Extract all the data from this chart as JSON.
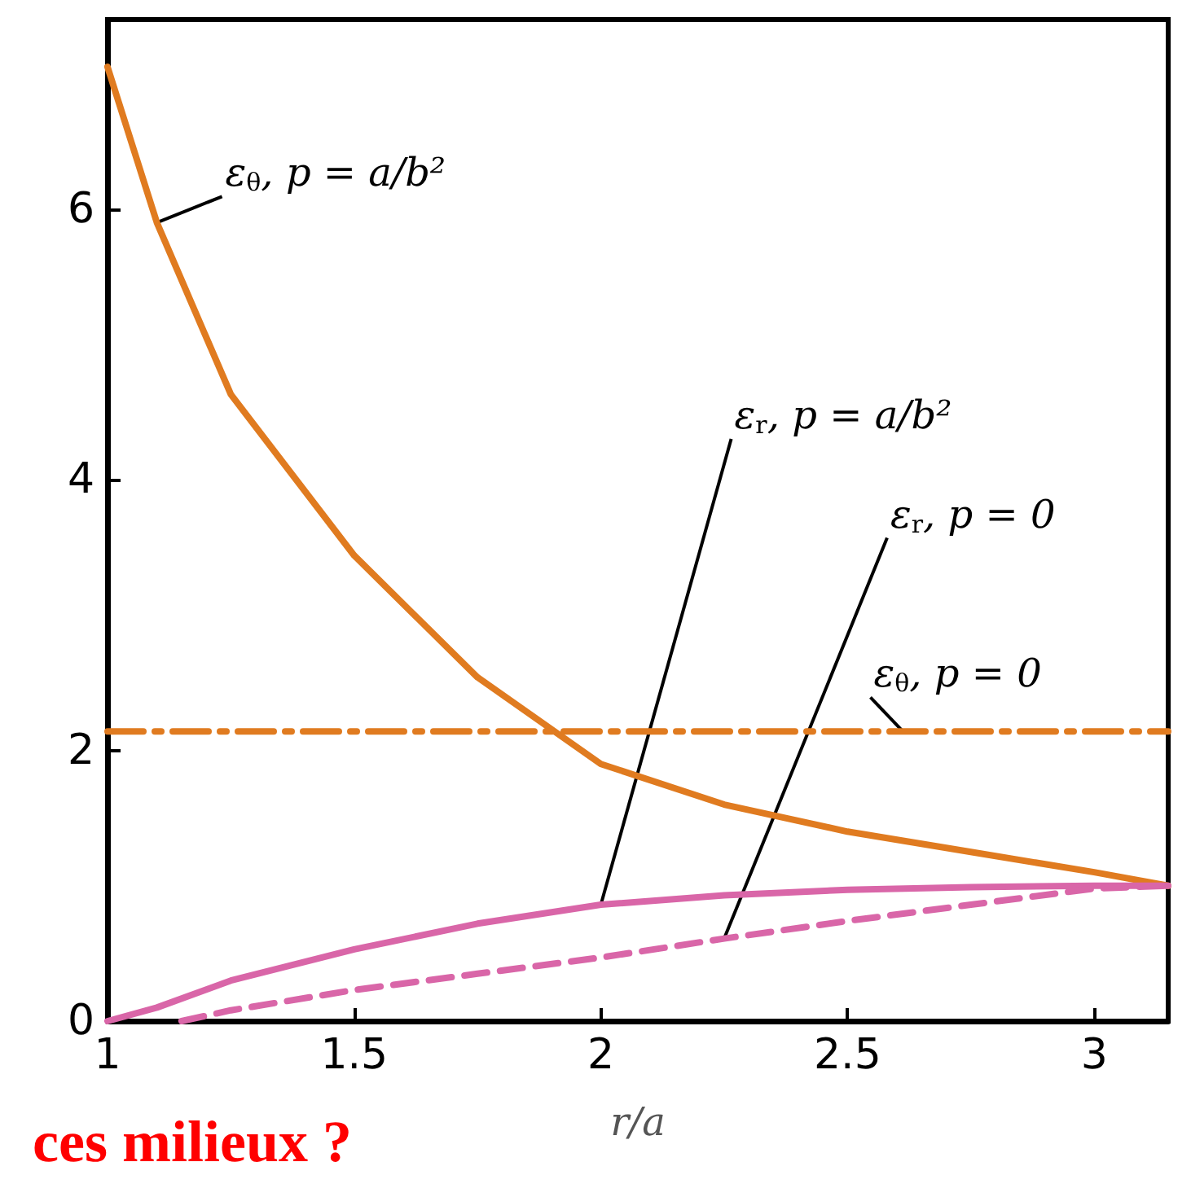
{
  "chart_data": {
    "type": "line",
    "xlabel": "r/a",
    "xlim": [
      1,
      3.15
    ],
    "xticks": [
      1,
      1.5,
      2,
      2.5,
      3
    ],
    "ylim": [
      0,
      7.4
    ],
    "yticks": [
      0,
      2,
      4,
      6
    ],
    "grid": false,
    "legend": false,
    "marker": "none",
    "series": [
      {
        "name": "ε$_{θ}$, p = a/b²",
        "color": "#e07b20",
        "line_style": "solid",
        "x": [
          1,
          1.1,
          1.25,
          1.5,
          1.75,
          2,
          2.25,
          2.5,
          2.75,
          3,
          3.15
        ],
        "values": [
          7.05,
          5.9,
          4.63,
          3.44,
          2.54,
          1.9,
          1.6,
          1.4,
          1.25,
          1.1,
          1.0
        ]
      },
      {
        "name": "ε$_{r}$, p = a/b²",
        "color": "#d966a8",
        "line_style": "solid",
        "x": [
          1,
          1.1,
          1.25,
          1.5,
          1.75,
          2,
          2.25,
          2.5,
          2.75,
          3,
          3.15
        ],
        "values": [
          0,
          0.1,
          0.3,
          0.53,
          0.72,
          0.86,
          0.93,
          0.97,
          0.99,
          1.0,
          1.0
        ]
      },
      {
        "name": "ε$_{r}$, p = 0",
        "color": "#d966a8",
        "line_style": "dashed",
        "x": [
          1.15,
          1.25,
          1.5,
          1.75,
          2,
          2.25,
          2.5,
          2.75,
          3,
          3.15
        ],
        "values": [
          0,
          0.08,
          0.23,
          0.35,
          0.47,
          0.61,
          0.74,
          0.86,
          0.98,
          1.0
        ]
      },
      {
        "name": "ε$_{θ}$, p = 0",
        "color": "#e07b20",
        "line_style": "dashdot",
        "x": [
          1,
          3.15
        ],
        "values": [
          2.14,
          2.14
        ]
      }
    ],
    "annotations": [
      "ces milieux ?"
    ]
  }
}
